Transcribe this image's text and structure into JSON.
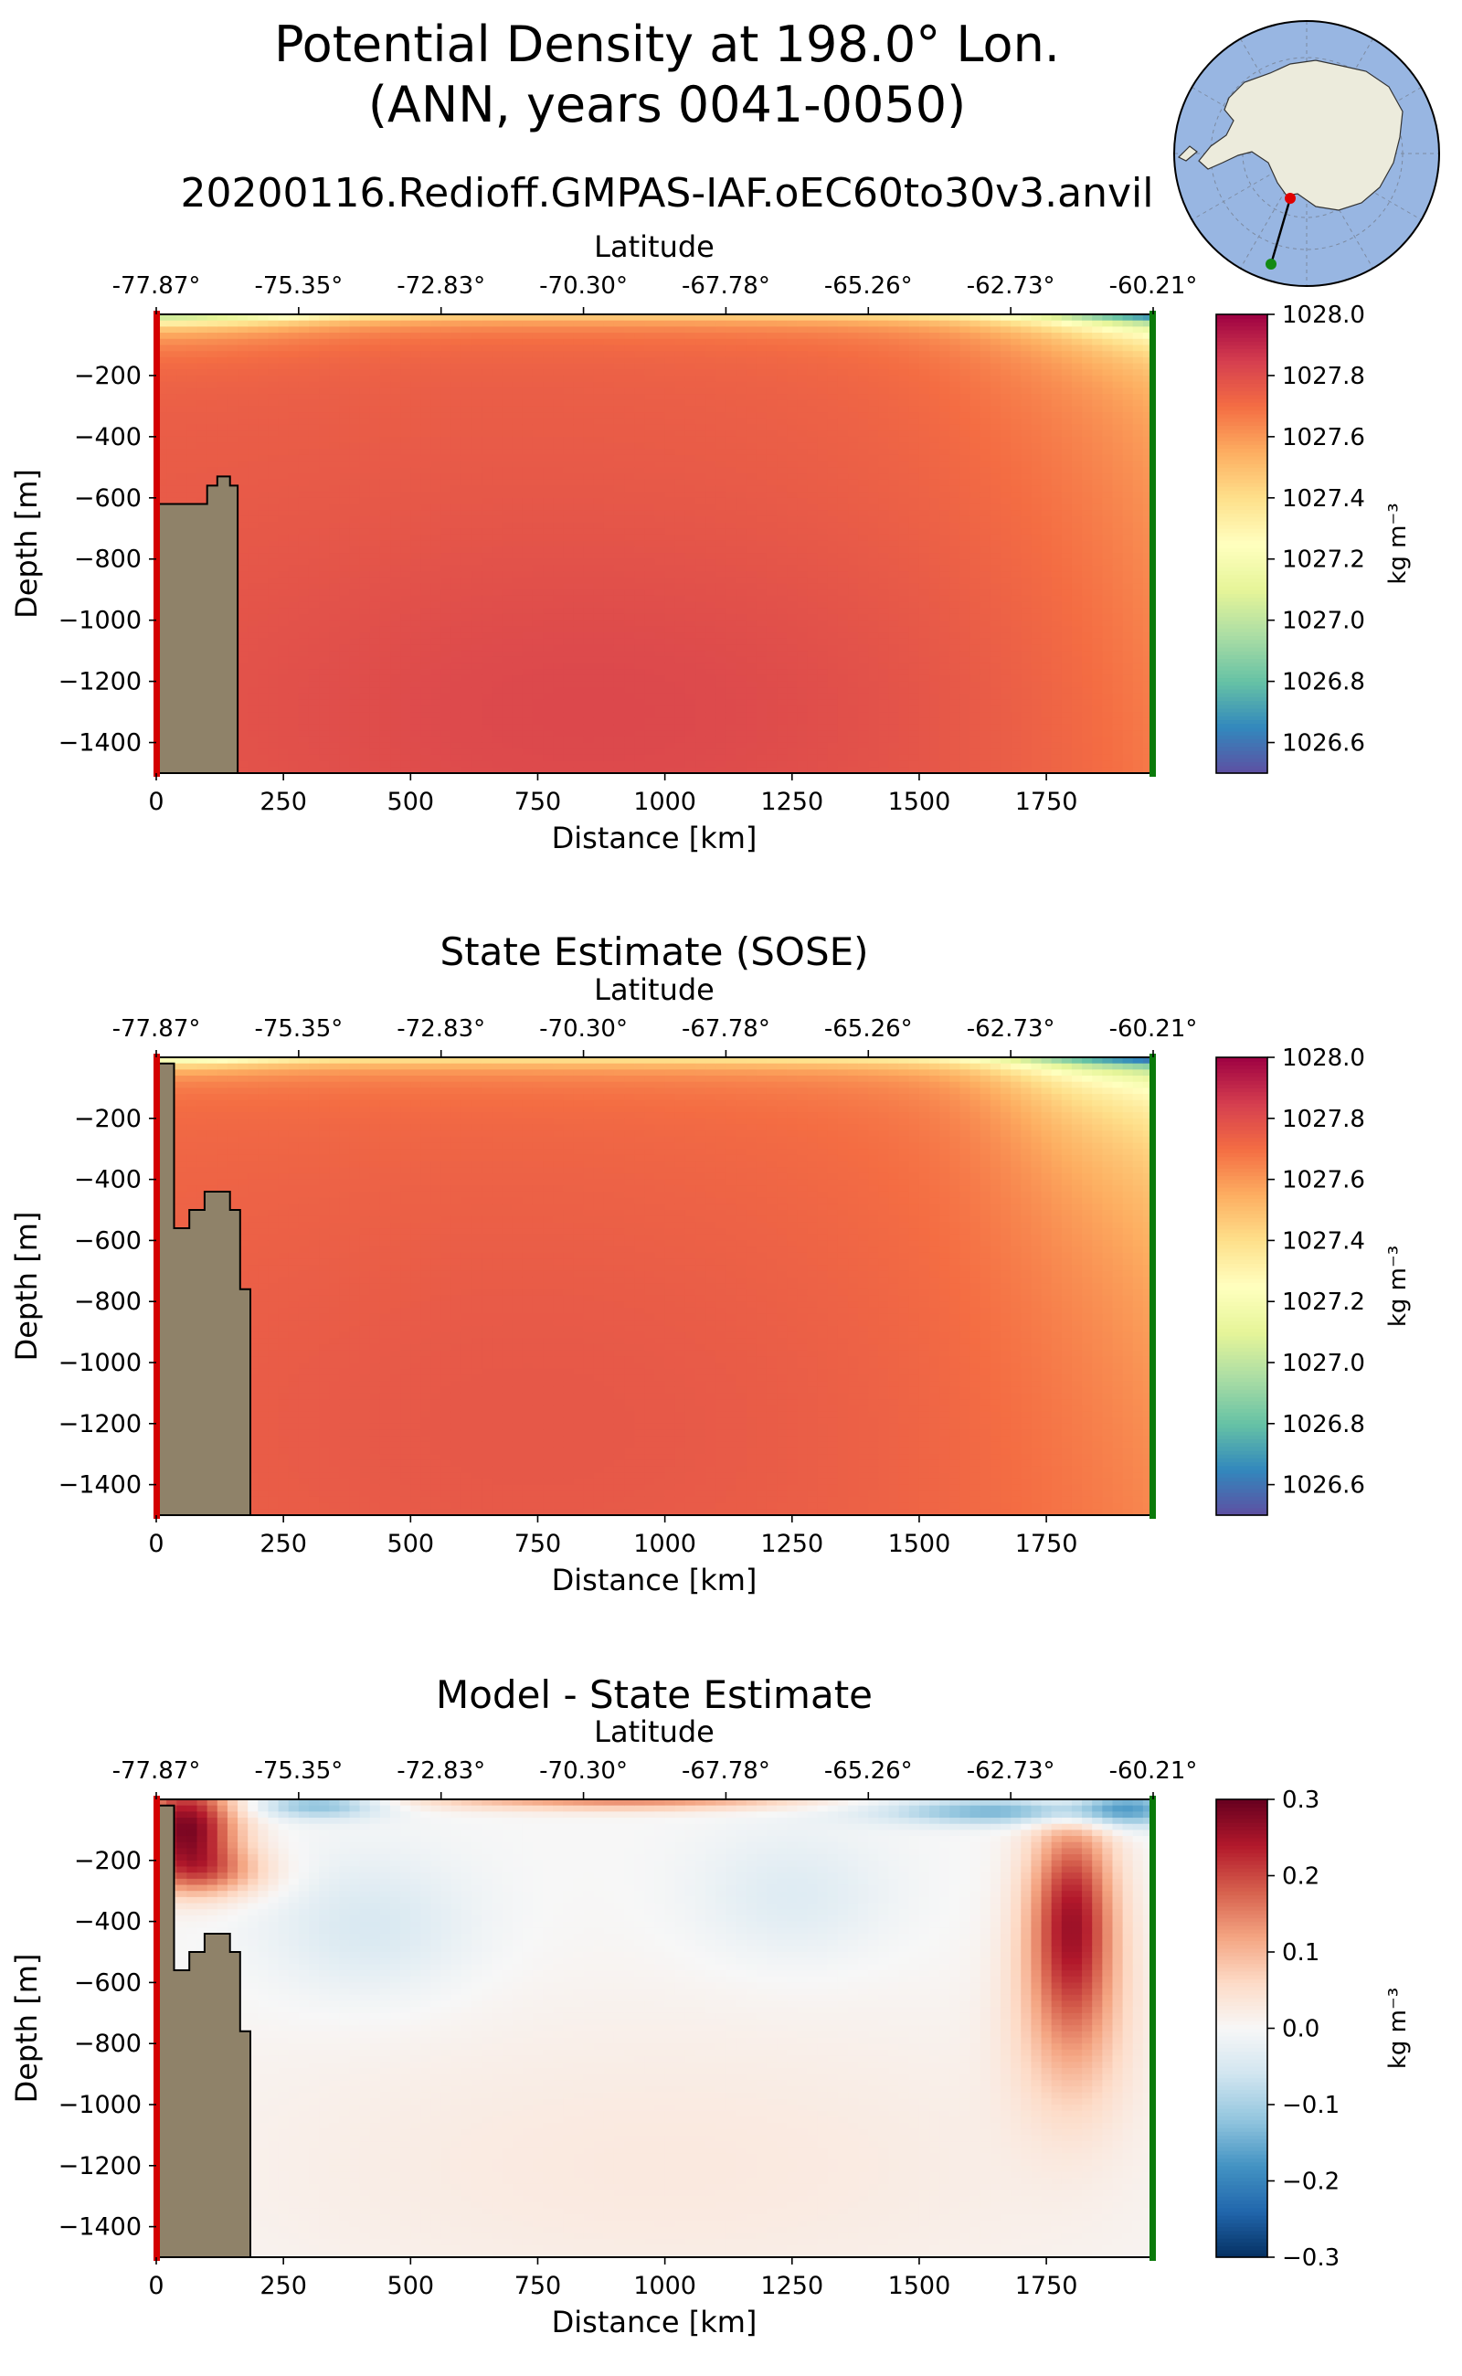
{
  "figure": {
    "title_line1": "Potential Density at 198.0° Lon.",
    "title_line2": "(ANN, years 0041-0050)",
    "run_name": "20200116.Redioff.GMPAS-IAF.oEC60to30v3.anvil",
    "colors": {
      "land": "#8f8269",
      "start_marker": "#d40000",
      "end_marker": "#0a7a0a",
      "map_ocean": "#98b6e2",
      "map_land": "#ecebdc"
    }
  },
  "inset_map": {
    "projection": "south-polar",
    "transect_start_color": "red",
    "transect_end_color": "green"
  },
  "chart_data": [
    {
      "type": "heatmap",
      "title": "",
      "xlabel": "Distance [km]",
      "ylabel": "Depth [m]",
      "top_axis_label": "Latitude",
      "xlim": [
        0,
        1960
      ],
      "ylim": [
        -1500,
        0
      ],
      "xticks": [
        0,
        250,
        500,
        750,
        1000,
        1250,
        1500,
        1750
      ],
      "yticks": [
        -200,
        -400,
        -600,
        -800,
        -1000,
        -1200,
        -1400
      ],
      "lat_ticks": [
        "-77.87°",
        "-75.35°",
        "-72.83°",
        "-70.30°",
        "-67.78°",
        "-65.26°",
        "-62.73°",
        "-60.21°"
      ],
      "colorbar": {
        "label": "kg m⁻³",
        "range": [
          1026.5,
          1028.0
        ],
        "ticks": [
          1026.6,
          1026.8,
          1027.0,
          1027.2,
          1027.4,
          1027.6,
          1027.8,
          1028.0
        ],
        "tick_labels": [
          "1026.6",
          "1026.8",
          "1027.0",
          "1027.2",
          "1027.4",
          "1027.6",
          "1027.8",
          "1028.0"
        ],
        "colormap": "Spectral_r"
      },
      "grid": false,
      "bathymetry": [
        [
          0,
          -1500
        ],
        [
          0,
          -620
        ],
        [
          100,
          -620
        ],
        [
          100,
          -560
        ],
        [
          120,
          -560
        ],
        [
          120,
          -530
        ],
        [
          145,
          -530
        ],
        [
          145,
          -560
        ],
        [
          160,
          -560
        ],
        [
          160,
          -1500
        ]
      ],
      "field_summary": "surface layer lighter (≈1026.5-1027.2) near x≈0-300 km and x≥1700 km; interior 1027.7-1027.85"
    },
    {
      "type": "heatmap",
      "title": "State Estimate (SOSE)",
      "xlabel": "Distance [km]",
      "ylabel": "Depth [m]",
      "top_axis_label": "Latitude",
      "xlim": [
        0,
        1960
      ],
      "ylim": [
        -1500,
        0
      ],
      "xticks": [
        0,
        250,
        500,
        750,
        1000,
        1250,
        1500,
        1750
      ],
      "yticks": [
        -200,
        -400,
        -600,
        -800,
        -1000,
        -1200,
        -1400
      ],
      "lat_ticks": [
        "-77.87°",
        "-75.35°",
        "-72.83°",
        "-70.30°",
        "-67.78°",
        "-65.26°",
        "-62.73°",
        "-60.21°"
      ],
      "colorbar": {
        "label": "kg m⁻³",
        "range": [
          1026.5,
          1028.0
        ],
        "ticks": [
          1026.6,
          1026.8,
          1027.0,
          1027.2,
          1027.4,
          1027.6,
          1027.8,
          1028.0
        ],
        "tick_labels": [
          "1026.6",
          "1026.8",
          "1027.0",
          "1027.2",
          "1027.4",
          "1027.6",
          "1027.8",
          "1028.0"
        ],
        "colormap": "Spectral_r"
      },
      "grid": false,
      "bathymetry": [
        [
          0,
          -1500
        ],
        [
          0,
          -20
        ],
        [
          35,
          -20
        ],
        [
          35,
          -560
        ],
        [
          65,
          -560
        ],
        [
          65,
          -500
        ],
        [
          95,
          -500
        ],
        [
          95,
          -440
        ],
        [
          145,
          -440
        ],
        [
          145,
          -500
        ],
        [
          165,
          -500
        ],
        [
          165,
          -760
        ],
        [
          185,
          -760
        ],
        [
          185,
          -1500
        ]
      ],
      "field_summary": "surface layer lighter near x≈0-200 km and x≥1650 km (≈1027.1-1027.4); interior ≈1027.75"
    },
    {
      "type": "heatmap",
      "title": "Model - State Estimate",
      "xlabel": "Distance [km]",
      "ylabel": "Depth [m]",
      "top_axis_label": "Latitude",
      "xlim": [
        0,
        1960
      ],
      "ylim": [
        -1500,
        0
      ],
      "xticks": [
        0,
        250,
        500,
        750,
        1000,
        1250,
        1500,
        1750
      ],
      "yticks": [
        -200,
        -400,
        -600,
        -800,
        -1000,
        -1200,
        -1400
      ],
      "lat_ticks": [
        "-77.87°",
        "-75.35°",
        "-72.83°",
        "-70.30°",
        "-67.78°",
        "-65.26°",
        "-62.73°",
        "-60.21°"
      ],
      "colorbar": {
        "label": "kg m⁻³",
        "range": [
          -0.3,
          0.3
        ],
        "ticks": [
          -0.3,
          -0.2,
          -0.1,
          0.0,
          0.1,
          0.2,
          0.3
        ],
        "tick_labels": [
          "−0.3",
          "−0.2",
          "−0.1",
          "0.0",
          "0.1",
          "0.2",
          "0.3"
        ],
        "colormap": "RdBu_r"
      },
      "grid": false,
      "bathymetry": [
        [
          0,
          -1500
        ],
        [
          0,
          -20
        ],
        [
          35,
          -20
        ],
        [
          35,
          -560
        ],
        [
          65,
          -560
        ],
        [
          65,
          -500
        ],
        [
          95,
          -500
        ],
        [
          95,
          -440
        ],
        [
          145,
          -440
        ],
        [
          145,
          -500
        ],
        [
          165,
          -500
        ],
        [
          165,
          -760
        ],
        [
          185,
          -760
        ],
        [
          185,
          -1500
        ]
      ],
      "field_summary": "strong positive (≈0.25) near x≈50 km, depth 0-200 m; negative (≈-0.15) surface near x≈300 km and x≈1500-1950 km; positive (≈0.2) column at x≈1800 km, depth 150-700 m; weak negative blobs near x≈400 km and x≈1250 km at depth 300-500 m"
    }
  ]
}
